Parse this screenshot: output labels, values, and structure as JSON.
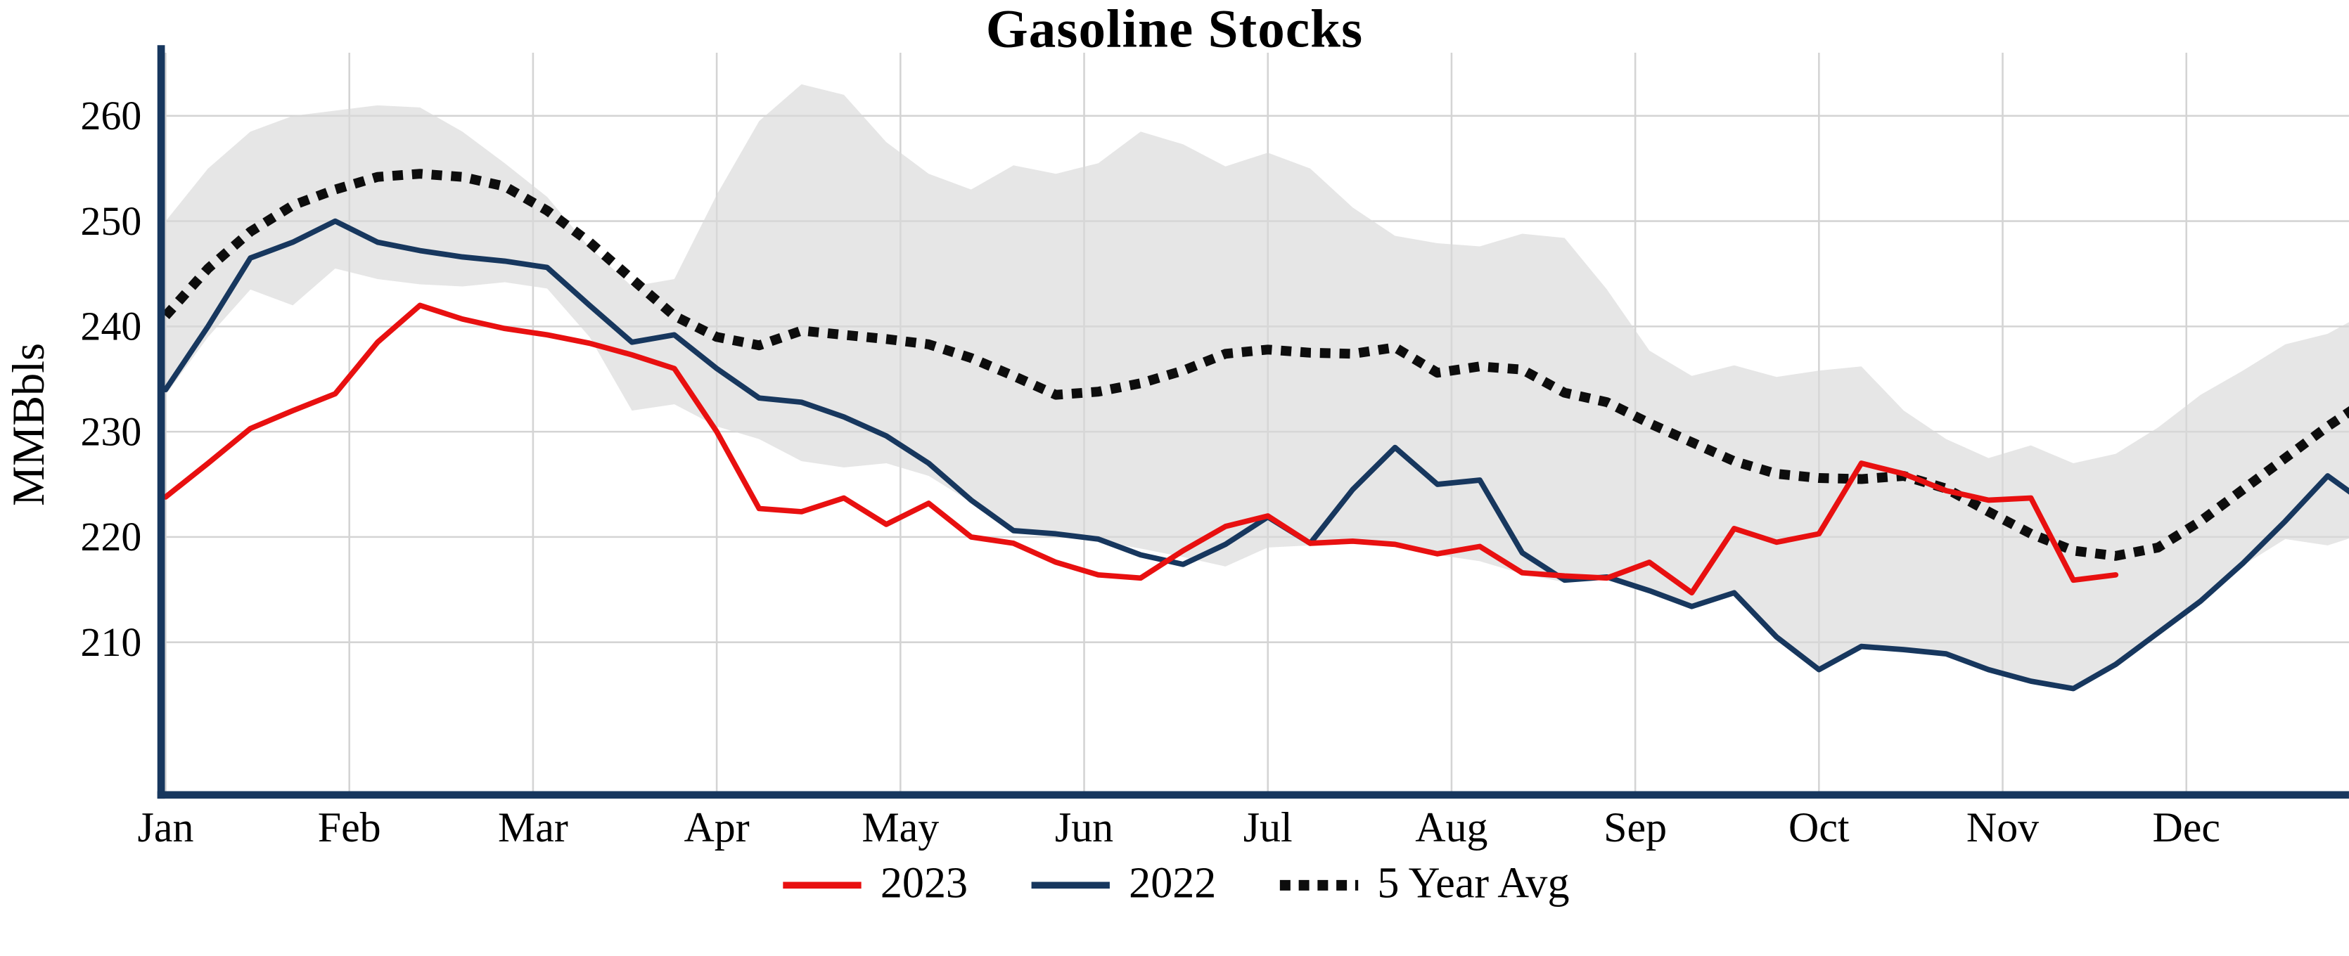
{
  "chart_data": {
    "type": "line",
    "title": "Gasoline Stocks",
    "xlabel": "",
    "ylabel": "MMBbls",
    "ylim": [
      195.5,
      266
    ],
    "yticks": [
      210,
      220,
      230,
      240,
      250,
      260
    ],
    "months": [
      "Jan",
      "Feb",
      "Mar",
      "Apr",
      "May",
      "Jun",
      "Jul",
      "Aug",
      "Sep",
      "Oct",
      "Nov",
      "Dec"
    ],
    "x_unit": "week-of-year",
    "grid": true,
    "legend_position": "bottom-center",
    "axis_color": "#17375e",
    "band": {
      "name": "5-year-range",
      "color": "#d9d9d9",
      "upper": [
        250,
        255,
        258.5,
        260,
        260.5,
        261,
        260.8,
        258.5,
        255.5,
        252.3,
        247.5,
        243.8,
        244.5,
        252.5,
        259.5,
        263,
        262,
        257.5,
        254.5,
        253,
        255.3,
        254.5,
        255.5,
        258.5,
        257.3,
        255.2,
        256.5,
        255,
        251.3,
        248.6,
        247.9,
        247.6,
        248.8,
        248.4,
        243.5,
        237.7,
        235.3,
        236.3,
        235.2,
        235.8,
        236.2,
        232,
        229.3,
        227.5,
        228.7,
        227,
        227.9,
        230.4,
        233.5,
        235.8,
        238.3,
        239.3,
        241.5
      ],
      "lower": [
        233.5,
        239,
        243.5,
        242,
        245.5,
        244.5,
        244,
        243.8,
        244.2,
        243.6,
        239,
        232,
        232.6,
        230.5,
        229.3,
        227.2,
        226.6,
        227,
        225.8,
        223.3,
        220.5,
        220.1,
        219.6,
        218.9,
        218.1,
        217.2,
        219,
        219.2,
        219.4,
        219.2,
        218.3,
        217.7,
        216.5,
        215.7,
        216,
        214.7,
        213.2,
        214.5,
        210.3,
        207.2,
        209.4,
        209.1,
        208.7,
        207.2,
        206.1,
        205.4,
        207.7,
        210.7,
        213.7,
        217.3,
        219.8,
        219.2,
        220.5
      ]
    },
    "series": [
      {
        "name": "2023",
        "color": "#e81010",
        "style": "solid",
        "values": [
          223.8,
          227,
          230.3,
          232,
          233.6,
          238.5,
          242,
          240.7,
          239.8,
          239.2,
          238.4,
          237.3,
          236,
          230,
          222.7,
          222.4,
          223.7,
          221.2,
          223.2,
          220,
          219.4,
          217.6,
          216.4,
          216.1,
          218.7,
          221,
          222,
          219.4,
          219.6,
          219.3,
          218.4,
          219.1,
          216.6,
          216.3,
          216.1,
          217.6,
          214.7,
          220.8,
          219.5,
          220.3,
          227,
          226,
          224.4,
          223.5,
          223.7,
          215.9,
          216.4
        ]
      },
      {
        "name": "2022",
        "color": "#17375e",
        "style": "solid",
        "values": [
          234,
          240,
          246.5,
          248,
          250,
          248,
          247.2,
          246.6,
          246.2,
          245.6,
          242,
          238.5,
          239.2,
          236,
          233.2,
          232.8,
          231.4,
          229.6,
          227,
          223.5,
          220.6,
          220.3,
          219.8,
          218.3,
          217.4,
          219.3,
          221.9,
          219.4,
          224.5,
          228.5,
          225,
          225.4,
          218.5,
          215.9,
          216.2,
          214.9,
          213.4,
          214.7,
          210.5,
          207.4,
          209.6,
          209.3,
          208.9,
          207.4,
          206.3,
          205.6,
          207.9,
          210.9,
          213.9,
          217.5,
          221.5,
          225.8,
          222.9
        ]
      },
      {
        "name": "5 Year Avg",
        "color": "#0d0d0d",
        "style": "dotted",
        "values": [
          241,
          245.5,
          249,
          251.5,
          253,
          254.2,
          254.5,
          254.2,
          253.3,
          251,
          248,
          244.5,
          241,
          239,
          238.2,
          239.6,
          239.2,
          238.8,
          238.3,
          237,
          235.3,
          233.5,
          233.8,
          234.6,
          235.8,
          237.4,
          237.8,
          237.5,
          237.4,
          238,
          235.6,
          236.2,
          235.9,
          233.7,
          232.8,
          230.8,
          229,
          227.2,
          226,
          225.6,
          225.5,
          225.8,
          224.6,
          222.4,
          220.3,
          218.7,
          218.2,
          219,
          221.5,
          224.5,
          227.5,
          230.5,
          233.2
        ]
      }
    ]
  }
}
